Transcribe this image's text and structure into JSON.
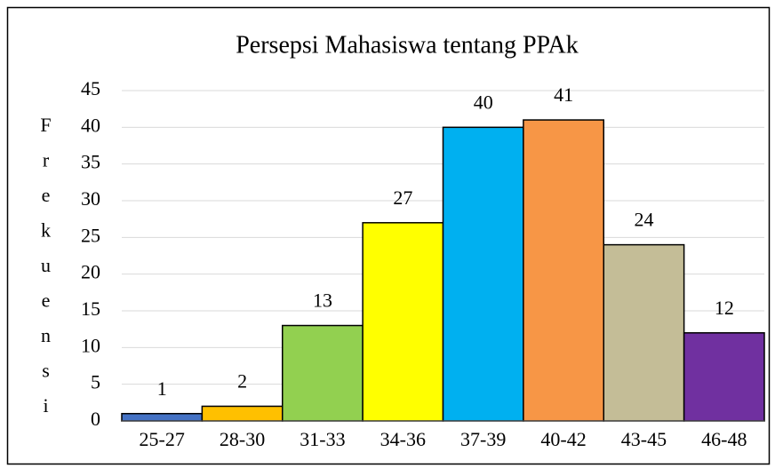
{
  "chart_data": {
    "type": "bar",
    "title": "Persepsi Mahasiswa tentang PPAk",
    "y_label": "Frekuensi",
    "categories": [
      "25-27",
      "28-30",
      "31-33",
      "34-36",
      "37-39",
      "40-42",
      "43-45",
      "46-48"
    ],
    "values": [
      1,
      2,
      13,
      27,
      40,
      41,
      24,
      12
    ],
    "colors": [
      "#4472c4",
      "#ffc000",
      "#92d050",
      "#ffff00",
      "#00b0f0",
      "#f79646",
      "#c4bd97",
      "#7030a0"
    ],
    "ylim": [
      0,
      45
    ],
    "yticks": [
      0,
      5,
      10,
      15,
      20,
      25,
      30,
      35,
      40,
      45
    ],
    "grid": true
  }
}
